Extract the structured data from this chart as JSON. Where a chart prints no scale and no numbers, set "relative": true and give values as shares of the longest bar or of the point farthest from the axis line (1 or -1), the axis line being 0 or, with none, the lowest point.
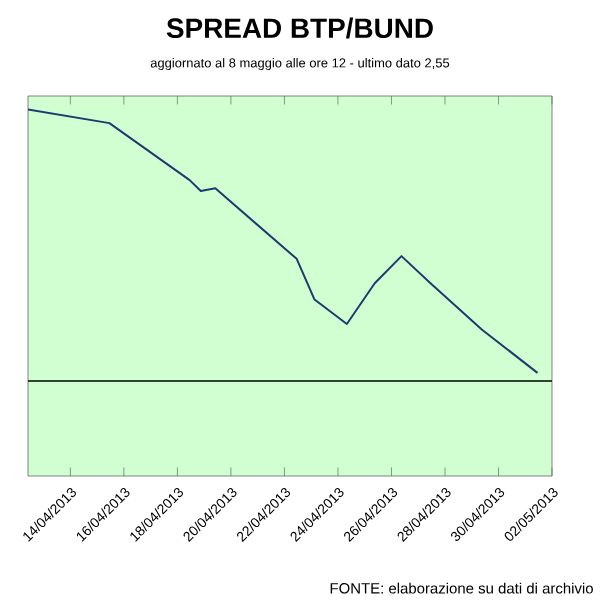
{
  "chart_data": {
    "type": "line",
    "title": "SPREAD  BTP/BUND",
    "subtitle": "aggiornato al 8 maggio alle ore 12 -  ultimo dato 2,55",
    "relative": true,
    "x": [
      "2013-04-12T10:00",
      "2013-04-15T11:00",
      "2013-04-18T11:00",
      "2013-04-18T21:00",
      "2013-04-19T10:00",
      "2013-04-22T11:00",
      "2013-04-23T03:00",
      "2013-04-24T08:00",
      "2013-04-25T09:00",
      "2013-04-26T09:00",
      "2013-04-27T11:00",
      "2013-04-29T09:00",
      "2013-05-01T11:00"
    ],
    "series": [
      {
        "color": "#1f3a6e",
        "values": [
          1.0,
          0.95,
          0.74,
          0.7,
          0.71,
          0.45,
          0.3,
          0.21,
          0.36,
          0.46,
          0.36,
          0.19,
          0.03
        ]
      }
    ],
    "xlim": [
      "2013-04-12T10:00",
      "2013-05-02"
    ],
    "xticks": [
      {
        "value": "2013-04-14",
        "label": "14/04/2013"
      },
      {
        "value": "2013-04-16",
        "label": "16/04/2013"
      },
      {
        "value": "2013-04-18",
        "label": "18/04/2013"
      },
      {
        "value": "2013-04-20",
        "label": "20/04/2013"
      },
      {
        "value": "2013-04-22",
        "label": "22/04/2013"
      },
      {
        "value": "2013-04-24",
        "label": "24/04/2013"
      },
      {
        "value": "2013-04-26",
        "label": "26/04/2013"
      },
      {
        "value": "2013-04-28",
        "label": "28/04/2013"
      },
      {
        "value": "2013-04-30",
        "label": "30/04/2013"
      },
      {
        "value": "2013-05-02",
        "label": "02/05/2013"
      }
    ],
    "annotations": [
      "FONTE: elaborazione su dati di archivio"
    ]
  }
}
